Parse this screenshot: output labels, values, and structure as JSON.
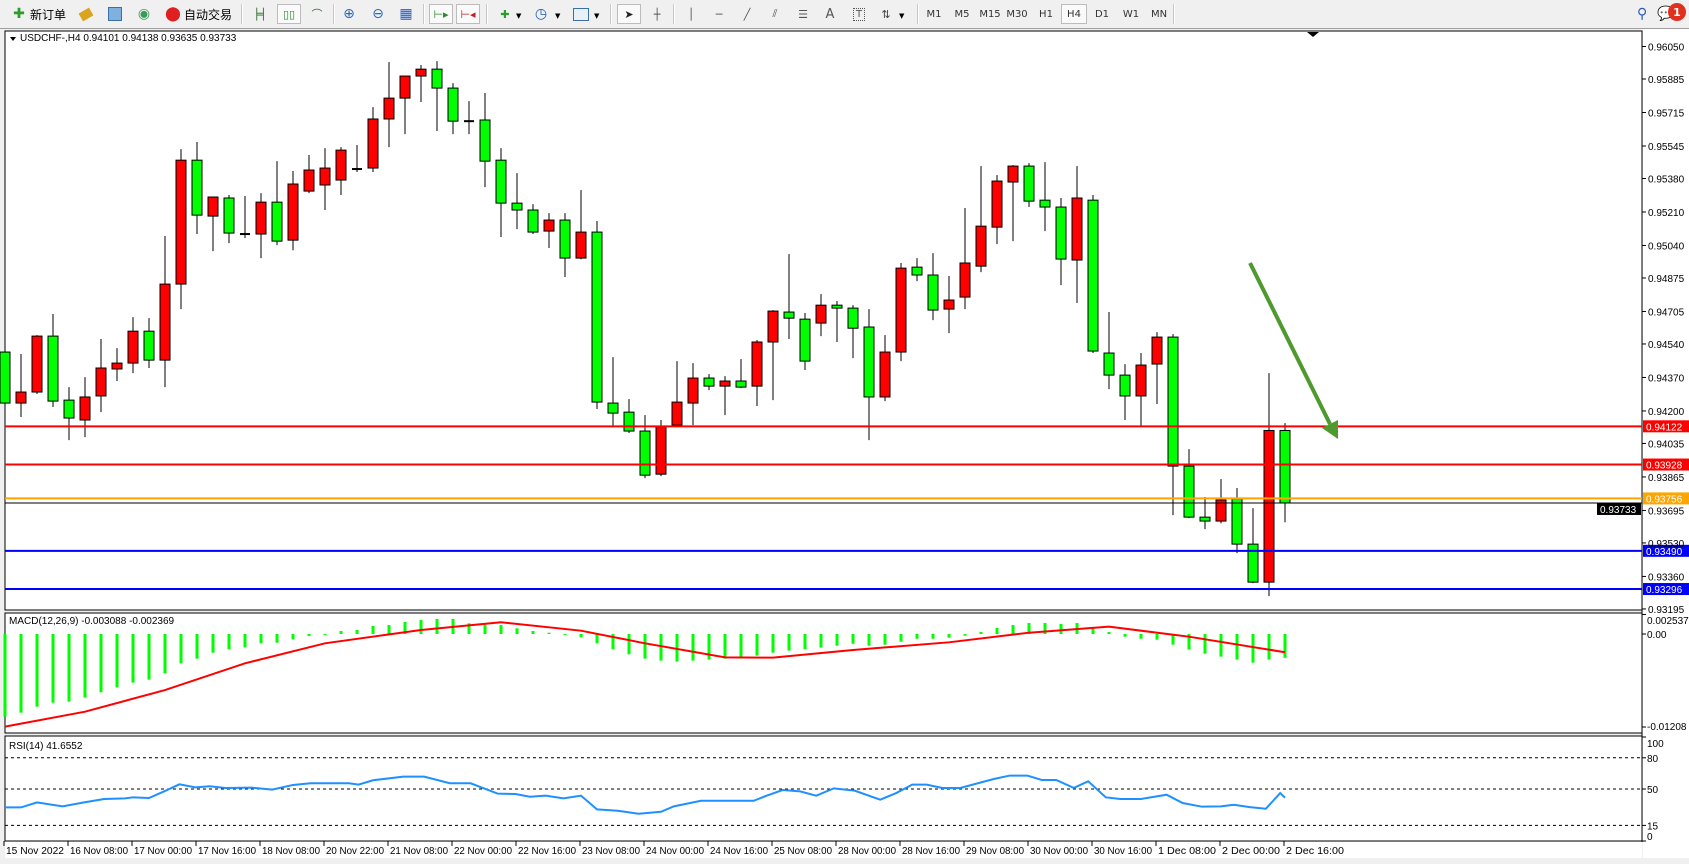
{
  "toolbar": {
    "new_order_label": "新订单",
    "auto_trading_label": "自动交易",
    "timeframes": [
      "M1",
      "M5",
      "M15",
      "M30",
      "H1",
      "H4",
      "D1",
      "W1",
      "MN"
    ],
    "active_timeframe": "H4",
    "notification_count": "1",
    "icons": [
      "new-order-icon",
      "experts-icon",
      "terminal-icon",
      "signals-icon",
      "auto-trading-icon",
      "bar-chart-icon",
      "candlestick-icon",
      "line-chart-icon",
      "zoom-in-icon",
      "zoom-out-icon",
      "tile-windows-icon",
      "auto-scroll-icon",
      "chart-shift-icon",
      "indicators-icon",
      "periods-icon",
      "templates-icon",
      "cursor-icon",
      "crosshair-icon",
      "vertical-line-icon",
      "horizontal-line-icon",
      "trendline-icon",
      "fibonacci-channel-icon",
      "fibonacci-icon",
      "text-icon",
      "text-label-icon",
      "arrows-icon",
      "search-icon",
      "chat-icon"
    ]
  },
  "chart": {
    "header": "USDCHF-,H4  0.94101 0.94138 0.93635 0.93733",
    "colors": {
      "bull": "#ff0000",
      "bear": "#00ff00",
      "macd_hist": "#00ff00",
      "macd_signal": "#ff0000",
      "rsi": "#1e90ff",
      "arrow": "#4f9a2e"
    },
    "price_ticks": [
      "0.96050",
      "0.95885",
      "0.95715",
      "0.95545",
      "0.95380",
      "0.95210",
      "0.95040",
      "0.94875",
      "0.94705",
      "0.94540",
      "0.94370",
      "0.94200",
      "0.94035",
      "0.93865",
      "0.93695",
      "0.93530",
      "0.93360",
      "0.93195"
    ],
    "hlines": [
      {
        "price": "0.94122",
        "color": "#ff0000"
      },
      {
        "price": "0.93928",
        "color": "#ff0000"
      },
      {
        "price": "0.93756",
        "color": "#ffa500"
      },
      {
        "price": "0.93490",
        "color": "#0000ff"
      },
      {
        "price": "0.93296",
        "color": "#0000ff"
      }
    ],
    "current_price": "0.93733",
    "time_labels": [
      "15 Nov 2022",
      "16 Nov 08:00",
      "17 Nov 00:00",
      "17 Nov 16:00",
      "18 Nov 08:00",
      "20 Nov 22:00",
      "21 Nov 08:00",
      "22 Nov 00:00",
      "22 Nov 16:00",
      "23 Nov 08:00",
      "24 Nov 00:00",
      "24 Nov 16:00",
      "25 Nov 08:00",
      "28 Nov 00:00",
      "28 Nov 16:00",
      "29 Nov 08:00",
      "30 Nov 00:00",
      "30 Nov 16:00",
      "1 Dec 08:00",
      "2 Dec 00:00",
      "2 Dec 16:00"
    ],
    "annotation": "down-arrow"
  },
  "chart_data": [
    {
      "type": "candlestick",
      "symbol": "USDCHF-",
      "timeframe": "H4",
      "ylim": [
        0.93195,
        0.9605
      ],
      "ohlc": [
        [
          0.94499,
          0.94748,
          0.9423,
          0.9424
        ],
        [
          0.9424,
          0.94489,
          0.94169,
          0.94296
        ],
        [
          0.94296,
          0.94585,
          0.94286,
          0.9458
        ],
        [
          0.9458,
          0.94692,
          0.9422,
          0.9425
        ],
        [
          0.94255,
          0.94321,
          0.94052,
          0.94164
        ],
        [
          0.94154,
          0.94372,
          0.94067,
          0.94271
        ],
        [
          0.94276,
          0.94565,
          0.94194,
          0.94418
        ],
        [
          0.94413,
          0.94519,
          0.94352,
          0.94443
        ],
        [
          0.94443,
          0.94676,
          0.94392,
          0.94605
        ],
        [
          0.94605,
          0.94671,
          0.94418,
          0.94458
        ],
        [
          0.94458,
          0.95088,
          0.94321,
          0.94844
        ],
        [
          0.94844,
          0.95529,
          0.94717,
          0.95473
        ],
        [
          0.95473,
          0.95565,
          0.95098,
          0.95194
        ],
        [
          0.95189,
          0.95286,
          0.95011,
          0.95286
        ],
        [
          0.95281,
          0.95296,
          0.95052,
          0.95103
        ],
        [
          0.95098,
          0.95291,
          0.95077,
          0.95095
        ],
        [
          0.95098,
          0.95306,
          0.94976,
          0.9526
        ],
        [
          0.9526,
          0.95468,
          0.95042,
          0.95062
        ],
        [
          0.95067,
          0.95418,
          0.95016,
          0.95352
        ],
        [
          0.95316,
          0.95499,
          0.95306,
          0.95423
        ],
        [
          0.95347,
          0.95534,
          0.9522,
          0.95433
        ],
        [
          0.95372,
          0.95539,
          0.95296,
          0.95524
        ],
        [
          0.95428,
          0.9555,
          0.95413,
          0.95425
        ],
        [
          0.95433,
          0.95742,
          0.95413,
          0.95682
        ],
        [
          0.95682,
          0.95971,
          0.95539,
          0.95788
        ],
        [
          0.95788,
          0.959,
          0.95605,
          0.959
        ],
        [
          0.959,
          0.95956,
          0.95768,
          0.95935
        ],
        [
          0.95935,
          0.95976,
          0.95621,
          0.95839
        ],
        [
          0.95839,
          0.95864,
          0.95605,
          0.95671
        ],
        [
          0.95671,
          0.95773,
          0.95605,
          0.95668
        ],
        [
          0.95677,
          0.95814,
          0.95336,
          0.95468
        ],
        [
          0.95473,
          0.95534,
          0.95083,
          0.95255
        ],
        [
          0.95255,
          0.95407,
          0.95123,
          0.9522
        ],
        [
          0.9522,
          0.9525,
          0.95098,
          0.95108
        ],
        [
          0.95113,
          0.95204,
          0.95027,
          0.95169
        ],
        [
          0.95169,
          0.95204,
          0.9488,
          0.94976
        ],
        [
          0.94976,
          0.95321,
          0.9497,
          0.95108
        ],
        [
          0.95108,
          0.95164,
          0.9421,
          0.94245
        ],
        [
          0.9424,
          0.94473,
          0.94118,
          0.94189
        ],
        [
          0.94194,
          0.9426,
          0.94088,
          0.94098
        ],
        [
          0.94098,
          0.94179,
          0.93859,
          0.93874
        ],
        [
          0.93879,
          0.94154,
          0.93869,
          0.94118
        ],
        [
          0.94128,
          0.94453,
          0.94118,
          0.94245
        ],
        [
          0.9424,
          0.94443,
          0.94128,
          0.94367
        ],
        [
          0.94367,
          0.94387,
          0.94306,
          0.94326
        ],
        [
          0.94326,
          0.94377,
          0.94179,
          0.94352
        ],
        [
          0.94352,
          0.94463,
          0.94316,
          0.94321
        ],
        [
          0.94326,
          0.9456,
          0.94225,
          0.9455
        ],
        [
          0.9455,
          0.94712,
          0.94255,
          0.94707
        ],
        [
          0.94702,
          0.94996,
          0.94565,
          0.94671
        ],
        [
          0.94666,
          0.94697,
          0.94408,
          0.94453
        ],
        [
          0.94646,
          0.94793,
          0.9458,
          0.94737
        ],
        [
          0.94737,
          0.94758,
          0.9455,
          0.94722
        ],
        [
          0.94722,
          0.94737,
          0.94468,
          0.9462
        ],
        [
          0.94626,
          0.94717,
          0.94052,
          0.94271
        ],
        [
          0.94271,
          0.94585,
          0.9425,
          0.94499
        ],
        [
          0.94499,
          0.94951,
          0.94453,
          0.94925
        ],
        [
          0.9493,
          0.94976,
          0.94859,
          0.9489
        ],
        [
          0.9489,
          0.95001,
          0.94661,
          0.94712
        ],
        [
          0.94717,
          0.94885,
          0.94595,
          0.94763
        ],
        [
          0.94778,
          0.9523,
          0.94717,
          0.94951
        ],
        [
          0.94935,
          0.95443,
          0.94905,
          0.95138
        ],
        [
          0.95133,
          0.95397,
          0.95047,
          0.95367
        ],
        [
          0.95362,
          0.95448,
          0.95062,
          0.95443
        ],
        [
          0.95443,
          0.95458,
          0.95235,
          0.95265
        ],
        [
          0.9527,
          0.95463,
          0.95113,
          0.95235
        ],
        [
          0.95235,
          0.95281,
          0.94839,
          0.94971
        ],
        [
          0.94966,
          0.95443,
          0.94748,
          0.95281
        ],
        [
          0.9527,
          0.95296,
          0.94494,
          0.94504
        ],
        [
          0.94494,
          0.94702,
          0.94311,
          0.94382
        ],
        [
          0.94382,
          0.94438,
          0.94154,
          0.94276
        ],
        [
          0.94276,
          0.94494,
          0.94123,
          0.94433
        ],
        [
          0.94438,
          0.946,
          0.94235,
          0.94575
        ],
        [
          0.94575,
          0.9459,
          0.93671,
          0.9392
        ],
        [
          0.9392,
          0.94006,
          0.93656,
          0.93661
        ],
        [
          0.93661,
          0.93763,
          0.936,
          0.93641
        ],
        [
          0.93641,
          0.93854,
          0.9363,
          0.93748
        ],
        [
          0.93753,
          0.93809,
          0.93478,
          0.93524
        ],
        [
          0.93524,
          0.93707,
          0.93326,
          0.93331
        ],
        [
          0.93331,
          0.94392,
          0.9326,
          0.94101
        ],
        [
          0.94101,
          0.94138,
          0.93635,
          0.93733
        ]
      ]
    },
    {
      "type": "bar",
      "title": "MACD(12,26,9) -0.003088 -0.002369",
      "ylim": [
        -0.01208,
        0.002537
      ],
      "y_ticks": [
        "0.002537",
        "0.00",
        "-0.01208"
      ],
      "histogram": [
        -0.01074,
        -0.01022,
        -0.00944,
        -0.00892,
        -0.00879,
        -0.00827,
        -0.00757,
        -0.00692,
        -0.00632,
        -0.00593,
        -0.00511,
        -0.00381,
        -0.0032,
        -0.00243,
        -0.00199,
        -0.00173,
        -0.00121,
        -0.00113,
        -0.00069,
        -0.00026,
        -8e-05,
        0.00039,
        0.00052,
        0.00104,
        0.00117,
        0.00156,
        0.00182,
        0.00195,
        0.00195,
        0.00139,
        0.00121,
        0.00117,
        0.00074,
        0.00039,
        0.00017,
        -0.00013,
        -0.00043,
        -0.00121,
        -0.00199,
        -0.00264,
        -0.0032,
        -0.00346,
        -0.00359,
        -0.00346,
        -0.00333,
        -0.0032,
        -0.00312,
        -0.00281,
        -0.00243,
        -0.00216,
        -0.00199,
        -0.00177,
        -0.00152,
        -0.00126,
        -0.00152,
        -0.00139,
        -0.001,
        -0.00061,
        -0.00061,
        -0.00048,
        -0.00022,
        0.00026,
        0.00078,
        0.00117,
        0.00143,
        0.00143,
        0.0013,
        0.00143,
        0.00074,
        0.00026,
        -0.00035,
        -0.00061,
        -0.00074,
        -0.00139,
        -0.00203,
        -0.00255,
        -0.00294,
        -0.00333,
        -0.00372,
        -0.00333,
        -0.003088
      ],
      "signal_points": [
        [
          0,
          -0.01203
        ],
        [
          5,
          -0.01009
        ],
        [
          10,
          -0.00728
        ],
        [
          15,
          -0.00381
        ],
        [
          20,
          -0.00121
        ],
        [
          26,
          0.00052
        ],
        [
          31,
          0.00152
        ],
        [
          36,
          0.00043
        ],
        [
          40,
          -0.00121
        ],
        [
          45,
          -0.00303
        ],
        [
          48,
          -0.00307
        ],
        [
          53,
          -0.00208
        ],
        [
          59,
          -0.00108
        ],
        [
          64,
          0.00017
        ],
        [
          69,
          0.00095
        ],
        [
          74,
          -0.00035
        ],
        [
          80,
          -0.002369
        ]
      ]
    },
    {
      "type": "line",
      "title": "RSI(14) 41.6552",
      "ylim": [
        0,
        100
      ],
      "y_ticks": [
        "100",
        "80",
        "50",
        "15",
        "0"
      ],
      "levels": [
        80,
        50,
        15
      ],
      "points": [
        [
          0,
          32.3
        ],
        [
          1,
          32.3
        ],
        [
          2,
          37.1
        ],
        [
          3.6,
          33.3
        ],
        [
          4.9,
          37
        ],
        [
          6.2,
          40.4
        ],
        [
          7.5,
          41
        ],
        [
          8,
          42
        ],
        [
          9,
          41.3
        ],
        [
          9.9,
          47.4
        ],
        [
          10.9,
          54.5
        ],
        [
          11.9,
          51.6
        ],
        [
          12.8,
          52.6
        ],
        [
          13.8,
          51
        ],
        [
          15.4,
          51.3
        ],
        [
          16.7,
          49.4
        ],
        [
          18,
          53.9
        ],
        [
          19.1,
          55.5
        ],
        [
          21.5,
          55.5
        ],
        [
          22.1,
          54.2
        ],
        [
          23,
          58.4
        ],
        [
          24.9,
          61.9
        ],
        [
          26.2,
          61.9
        ],
        [
          27.8,
          55.5
        ],
        [
          29.1,
          55.5
        ],
        [
          30.8,
          45.5
        ],
        [
          31.9,
          45.2
        ],
        [
          32.8,
          42.6
        ],
        [
          33.8,
          43.6
        ],
        [
          34.9,
          41
        ],
        [
          36,
          43.6
        ],
        [
          37,
          30.4
        ],
        [
          38.3,
          29.1
        ],
        [
          39.6,
          26.2
        ],
        [
          41,
          28.1
        ],
        [
          41.8,
          33.3
        ],
        [
          43.5,
          38.7
        ],
        [
          46.8,
          38.7
        ],
        [
          47.6,
          43.6
        ],
        [
          48.6,
          49
        ],
        [
          49.7,
          47.7
        ],
        [
          50.7,
          43.6
        ],
        [
          51.8,
          50.6
        ],
        [
          53.1,
          48.4
        ],
        [
          54.7,
          39.7
        ],
        [
          55.7,
          46.1
        ],
        [
          56.7,
          54.2
        ],
        [
          57.6,
          54.2
        ],
        [
          58.6,
          51
        ],
        [
          59.7,
          51
        ],
        [
          61.8,
          59.6
        ],
        [
          62.8,
          62.9
        ],
        [
          63.9,
          62.9
        ],
        [
          64.8,
          58.7
        ],
        [
          65.7,
          58.7
        ],
        [
          66.8,
          51
        ],
        [
          67.7,
          57.4
        ],
        [
          68.8,
          42
        ],
        [
          69.7,
          40.4
        ],
        [
          71,
          40.4
        ],
        [
          72.6,
          44.5
        ],
        [
          73.6,
          36.5
        ],
        [
          74.8,
          33
        ],
        [
          76,
          33.3
        ],
        [
          76.8,
          34.9
        ],
        [
          77.8,
          32.6
        ],
        [
          78.8,
          31
        ],
        [
          79.7,
          46.1
        ],
        [
          80,
          41.6552
        ]
      ]
    }
  ]
}
